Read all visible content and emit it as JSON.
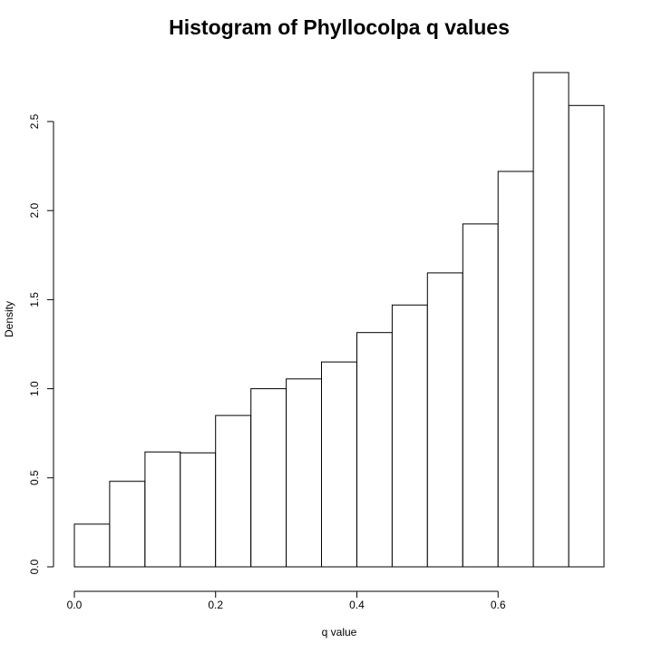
{
  "chart_data": {
    "type": "bar",
    "title": "Histogram of Phyllocolpa q values",
    "xlabel": "q value",
    "ylabel": "Density",
    "bin_width": 0.05,
    "bins": [
      {
        "x0": 0.0,
        "x1": 0.05,
        "density": 0.24
      },
      {
        "x0": 0.05,
        "x1": 0.1,
        "density": 0.48
      },
      {
        "x0": 0.1,
        "x1": 0.15,
        "density": 0.645
      },
      {
        "x0": 0.15,
        "x1": 0.2,
        "density": 0.64
      },
      {
        "x0": 0.2,
        "x1": 0.25,
        "density": 0.85
      },
      {
        "x0": 0.25,
        "x1": 0.3,
        "density": 1.0
      },
      {
        "x0": 0.3,
        "x1": 0.35,
        "density": 1.055
      },
      {
        "x0": 0.35,
        "x1": 0.4,
        "density": 1.15
      },
      {
        "x0": 0.4,
        "x1": 0.45,
        "density": 1.315
      },
      {
        "x0": 0.45,
        "x1": 0.5,
        "density": 1.47
      },
      {
        "x0": 0.5,
        "x1": 0.55,
        "density": 1.65
      },
      {
        "x0": 0.55,
        "x1": 0.6,
        "density": 1.925
      },
      {
        "x0": 0.6,
        "x1": 0.65,
        "density": 2.22
      },
      {
        "x0": 0.65,
        "x1": 0.7,
        "density": 2.775
      },
      {
        "x0": 0.7,
        "x1": 0.75,
        "density": 2.59
      }
    ],
    "x_ticks": [
      {
        "value": 0.0,
        "label": "0.0"
      },
      {
        "value": 0.2,
        "label": "0.2"
      },
      {
        "value": 0.4,
        "label": "0.4"
      },
      {
        "value": 0.6,
        "label": "0.6"
      }
    ],
    "y_ticks": [
      {
        "value": 0.0,
        "label": "0.0"
      },
      {
        "value": 0.5,
        "label": "0.5"
      },
      {
        "value": 1.0,
        "label": "1.0"
      },
      {
        "value": 1.5,
        "label": "1.5"
      },
      {
        "value": 2.0,
        "label": "2.0"
      },
      {
        "value": 2.5,
        "label": "2.5"
      }
    ],
    "xlim": [
      0.0,
      0.75
    ],
    "ylim": [
      0.0,
      2.775
    ],
    "grid": false,
    "legend": "none",
    "bar_fill": "#ffffff",
    "bar_stroke": "#000000"
  }
}
